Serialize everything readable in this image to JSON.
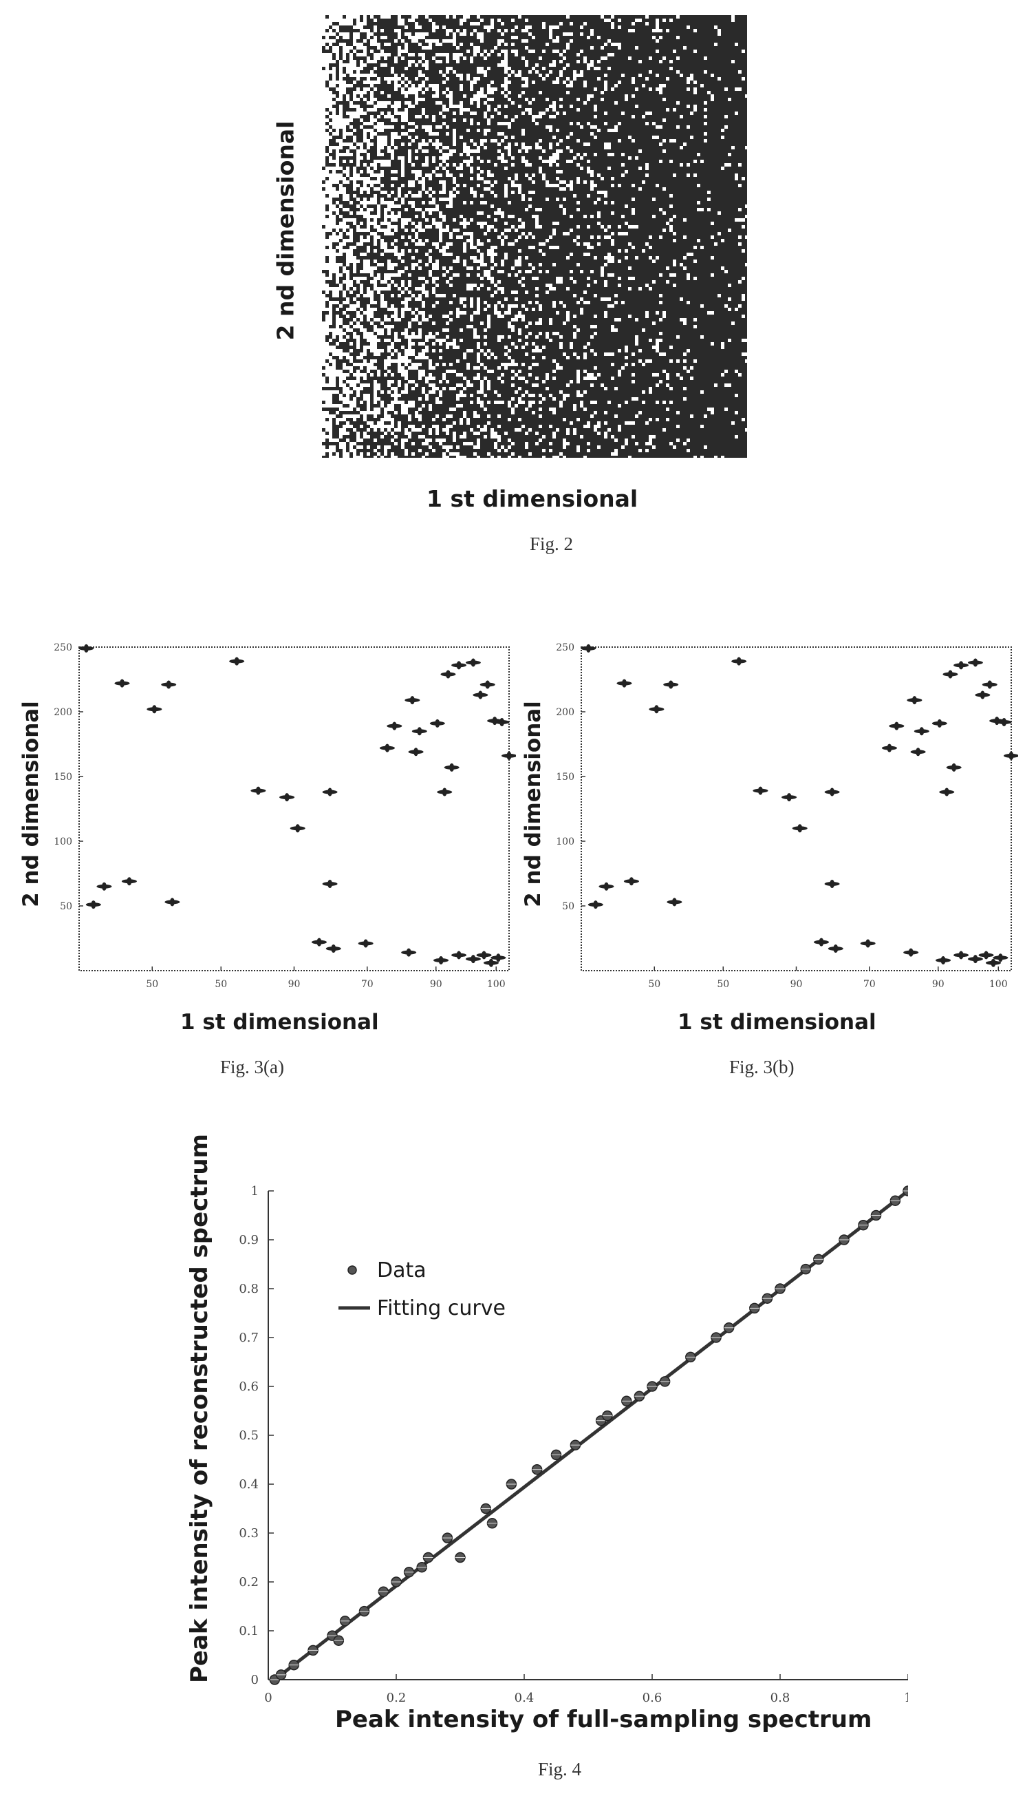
{
  "fig2": {
    "xlabel": "1 st dimensional",
    "ylabel": "2 nd dimensional",
    "caption": "Fig. 2"
  },
  "fig3a": {
    "xlabel": "1 st dimensional",
    "ylabel": "2 nd dimensional",
    "caption": "Fig. 3(a)"
  },
  "fig3b": {
    "xlabel": "1 st dimensional",
    "ylabel": "2 nd dimensional",
    "caption": "Fig. 3(b)"
  },
  "fig4": {
    "caption": "Fig. 4"
  },
  "chart_data": [
    {
      "type": "heatmap",
      "xlabel": "1 st dimensional",
      "ylabel": "2 nd dimensional",
      "note_values": "random sampling mask, denser toward right"
    },
    {
      "type": "scatter",
      "xlabel": "1 st dimensional",
      "ylabel": "2 nd dimensional",
      "xlim": [
        0,
        120
      ],
      "ylim": [
        0,
        250
      ],
      "x_tick_labels": [
        "50",
        "50",
        "90",
        "70",
        "90",
        "100"
      ],
      "y_tick_labels": [
        "50",
        "100",
        "150",
        "200",
        "250"
      ],
      "points": [
        [
          2,
          249
        ],
        [
          12,
          222
        ],
        [
          25,
          221
        ],
        [
          21,
          202
        ],
        [
          44,
          239
        ],
        [
          50,
          139
        ],
        [
          58,
          134
        ],
        [
          86,
          172
        ],
        [
          88,
          189
        ],
        [
          93,
          209
        ],
        [
          94,
          169
        ],
        [
          95,
          185
        ],
        [
          104,
          157
        ],
        [
          100,
          191
        ],
        [
          103,
          229
        ],
        [
          106,
          236
        ],
        [
          110,
          238
        ],
        [
          114,
          221
        ],
        [
          118,
          192
        ],
        [
          112,
          213
        ],
        [
          120,
          166
        ],
        [
          14,
          69
        ],
        [
          4,
          51
        ],
        [
          7,
          65
        ],
        [
          26,
          53
        ],
        [
          70,
          67
        ],
        [
          70,
          138
        ],
        [
          61,
          110
        ],
        [
          67,
          22
        ],
        [
          71,
          17
        ],
        [
          80,
          21
        ],
        [
          92,
          14
        ],
        [
          101,
          8
        ],
        [
          106,
          12
        ],
        [
          110,
          9
        ],
        [
          115,
          6
        ],
        [
          113,
          12
        ],
        [
          117,
          10
        ],
        [
          102,
          138
        ],
        [
          116,
          193
        ]
      ]
    },
    {
      "type": "scatter",
      "xlabel": "1 st dimensional",
      "ylabel": "2 nd dimensional",
      "xlim": [
        0,
        120
      ],
      "ylim": [
        0,
        250
      ],
      "x_tick_labels": [
        "50",
        "50",
        "90",
        "70",
        "90",
        "100"
      ],
      "y_tick_labels": [
        "50",
        "100",
        "150",
        "200",
        "250"
      ],
      "points": [
        [
          2,
          249
        ],
        [
          12,
          222
        ],
        [
          25,
          221
        ],
        [
          21,
          202
        ],
        [
          44,
          239
        ],
        [
          50,
          139
        ],
        [
          58,
          134
        ],
        [
          86,
          172
        ],
        [
          88,
          189
        ],
        [
          93,
          209
        ],
        [
          94,
          169
        ],
        [
          95,
          185
        ],
        [
          104,
          157
        ],
        [
          100,
          191
        ],
        [
          103,
          229
        ],
        [
          106,
          236
        ],
        [
          110,
          238
        ],
        [
          114,
          221
        ],
        [
          118,
          192
        ],
        [
          112,
          213
        ],
        [
          120,
          166
        ],
        [
          14,
          69
        ],
        [
          4,
          51
        ],
        [
          7,
          65
        ],
        [
          26,
          53
        ],
        [
          70,
          67
        ],
        [
          70,
          138
        ],
        [
          61,
          110
        ],
        [
          67,
          22
        ],
        [
          71,
          17
        ],
        [
          80,
          21
        ],
        [
          92,
          14
        ],
        [
          101,
          8
        ],
        [
          106,
          12
        ],
        [
          110,
          9
        ],
        [
          115,
          6
        ],
        [
          113,
          12
        ],
        [
          117,
          10
        ],
        [
          102,
          138
        ],
        [
          116,
          193
        ]
      ]
    },
    {
      "type": "scatter",
      "xlabel": "Peak intensity of full-sampling spectrum",
      "ylabel": "Peak intensity of reconstructed spectrum",
      "xlim": [
        0,
        1
      ],
      "ylim": [
        0,
        1
      ],
      "x_tick_labels": [
        "0",
        "0.2",
        "0.4",
        "0.6",
        "0.8",
        "1"
      ],
      "y_tick_labels": [
        "0",
        "0.1",
        "0.2",
        "0.3",
        "0.4",
        "0.5",
        "0.6",
        "0.7",
        "0.8",
        "0.9",
        "1"
      ],
      "legend": [
        "Data",
        "Fitting curve"
      ],
      "legend_position": "top-left",
      "series": [
        {
          "name": "Data",
          "x": [
            0.01,
            0.02,
            0.04,
            0.07,
            0.1,
            0.11,
            0.12,
            0.15,
            0.18,
            0.2,
            0.22,
            0.24,
            0.25,
            0.28,
            0.3,
            0.34,
            0.35,
            0.38,
            0.42,
            0.45,
            0.48,
            0.52,
            0.53,
            0.56,
            0.58,
            0.6,
            0.62,
            0.66,
            0.7,
            0.72,
            0.76,
            0.78,
            0.8,
            0.84,
            0.86,
            0.9,
            0.93,
            0.95,
            0.98,
            1.0
          ],
          "y": [
            0.0,
            0.01,
            0.03,
            0.06,
            0.09,
            0.08,
            0.12,
            0.14,
            0.18,
            0.2,
            0.22,
            0.23,
            0.25,
            0.29,
            0.25,
            0.35,
            0.32,
            0.4,
            0.43,
            0.46,
            0.48,
            0.53,
            0.54,
            0.57,
            0.58,
            0.6,
            0.61,
            0.66,
            0.7,
            0.72,
            0.76,
            0.78,
            0.8,
            0.84,
            0.86,
            0.9,
            0.93,
            0.95,
            0.98,
            1.0
          ]
        },
        {
          "name": "Fitting curve",
          "x": [
            0.01,
            1.0
          ],
          "y": [
            0.0,
            1.0
          ]
        }
      ]
    }
  ]
}
